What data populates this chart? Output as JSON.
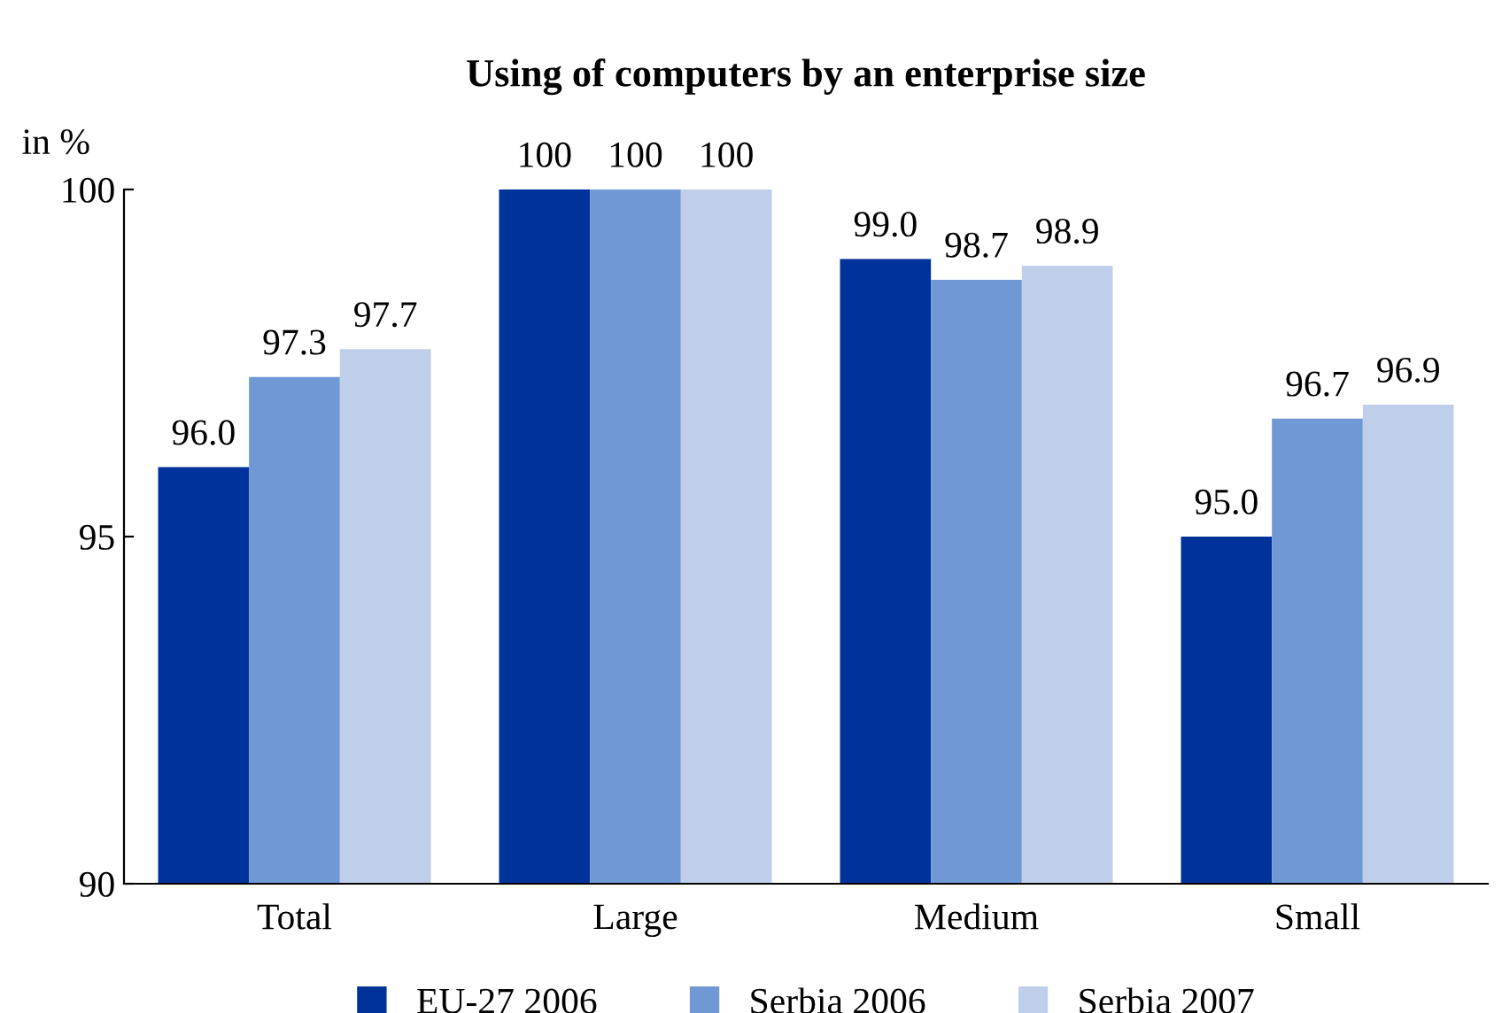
{
  "chart_data": {
    "type": "bar",
    "title": "Using of computers by an enterprise size",
    "ylabel": "in %",
    "categories": [
      "Total",
      "Large",
      "Medium",
      "Small"
    ],
    "series": [
      {
        "name": "EU-27 2006",
        "color": "#003399",
        "values": [
          96.0,
          100,
          99.0,
          95.0
        ],
        "value_labels": [
          "96.0",
          "100",
          "99.0",
          "95.0"
        ]
      },
      {
        "name": "Serbia 2006",
        "color": "#6f98d4",
        "values": [
          97.3,
          100,
          98.7,
          96.7
        ],
        "value_labels": [
          "97.3",
          "100",
          "98.7",
          "96.7"
        ]
      },
      {
        "name": "Serbia 2007",
        "color": "#bfcfea",
        "values": [
          97.7,
          100,
          98.9,
          96.9
        ],
        "value_labels": [
          "97.7",
          "100",
          "98.9",
          "96.9"
        ]
      }
    ],
    "ylim": [
      90,
      100
    ],
    "yticks": [
      90,
      95,
      100
    ],
    "grid": false,
    "legend": "bottom"
  }
}
